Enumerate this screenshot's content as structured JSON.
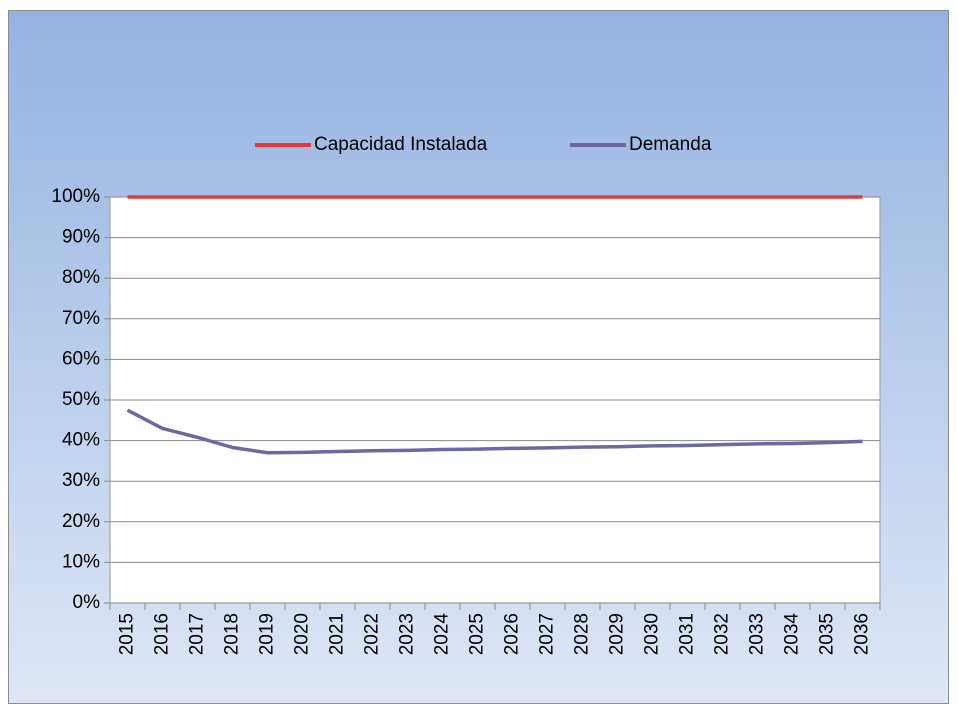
{
  "chart_data": {
    "type": "line",
    "categories": [
      "2015",
      "2016",
      "2017",
      "2018",
      "2019",
      "2020",
      "2021",
      "2022",
      "2023",
      "2024",
      "2025",
      "2026",
      "2027",
      "2028",
      "2029",
      "2030",
      "2031",
      "2032",
      "2033",
      "2034",
      "2035",
      "2036"
    ],
    "series": [
      {
        "name": "Capacidad Instalada",
        "color": "#e03a3e",
        "values": [
          100,
          100,
          100,
          100,
          100,
          100,
          100,
          100,
          100,
          100,
          100,
          100,
          100,
          100,
          100,
          100,
          100,
          100,
          100,
          100,
          100,
          100
        ]
      },
      {
        "name": "Demanda",
        "color": "#6a6aa0",
        "values": [
          47.5,
          43,
          40.8,
          38.3,
          37,
          37.1,
          37.3,
          37.5,
          37.6,
          37.8,
          37.9,
          38.1,
          38.2,
          38.4,
          38.5,
          38.7,
          38.8,
          39.0,
          39.2,
          39.3,
          39.5,
          39.8
        ]
      }
    ],
    "ylim": [
      0,
      100
    ],
    "yticks": [
      {
        "value": 0,
        "label": "0%"
      },
      {
        "value": 10,
        "label": "10%"
      },
      {
        "value": 20,
        "label": "20%"
      },
      {
        "value": 30,
        "label": "30%"
      },
      {
        "value": 40,
        "label": "40%"
      },
      {
        "value": 50,
        "label": "50%"
      },
      {
        "value": 60,
        "label": "60%"
      },
      {
        "value": 70,
        "label": "70%"
      },
      {
        "value": 80,
        "label": "80%"
      },
      {
        "value": 90,
        "label": "90%"
      },
      {
        "value": 100,
        "label": "100%"
      }
    ],
    "grid": true,
    "legend": "top"
  }
}
